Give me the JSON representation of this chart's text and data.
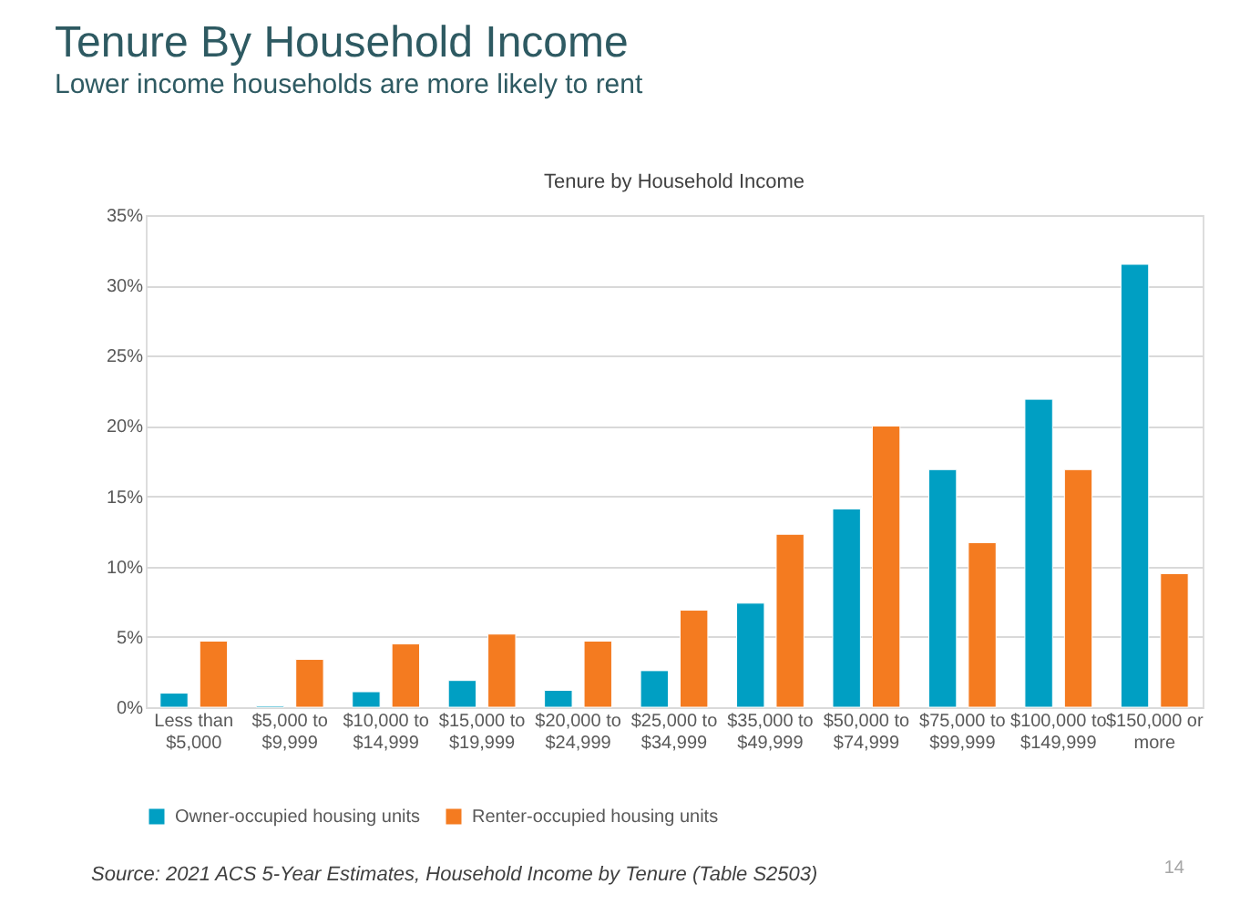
{
  "chart_data": {
    "type": "bar",
    "title": "Tenure By Household Income",
    "subtitle": "Lower income households are more likely to rent",
    "categories": [
      "Less than $5,000",
      "$5,000 to $9,999",
      "$10,000 to $14,999",
      "$15,000 to $19,999",
      "$20,000 to $24,999",
      "$25,000 to $34,999",
      "$35,000 to $49,999",
      "$50,000 to $74,999",
      "$75,000 to $99,999",
      "$100,000 to $149,999",
      "$150,000 or more"
    ],
    "series": [
      {
        "name": "Owner-occupied housing units",
        "color": "#009fc3",
        "values": [
          1.0,
          0.1,
          1.1,
          1.9,
          1.2,
          2.6,
          7.4,
          14.1,
          16.9,
          21.9,
          31.5
        ]
      },
      {
        "name": "Renter-occupied housing units",
        "color": "#f47b20",
        "values": [
          4.7,
          3.4,
          4.5,
          5.2,
          4.7,
          6.9,
          12.3,
          20.0,
          11.7,
          16.9,
          9.5
        ]
      }
    ],
    "ylim": [
      0,
      35
    ],
    "yticks": [
      {
        "value": 0,
        "label": "0%"
      },
      {
        "value": 5,
        "label": "5%"
      },
      {
        "value": 10,
        "label": "10%"
      },
      {
        "value": 15,
        "label": "15%"
      },
      {
        "value": 20,
        "label": "20%"
      },
      {
        "value": 25,
        "label": "25%"
      },
      {
        "value": 30,
        "label": "30%"
      },
      {
        "value": 35,
        "label": "35%"
      }
    ],
    "grid": "y",
    "legend": "bottom",
    "annotations": [
      "Tenure by Household Income",
      "Source: 2021 ACS 5-Year Estimates, Household Income by Tenure (Table S2503)",
      "14"
    ]
  }
}
